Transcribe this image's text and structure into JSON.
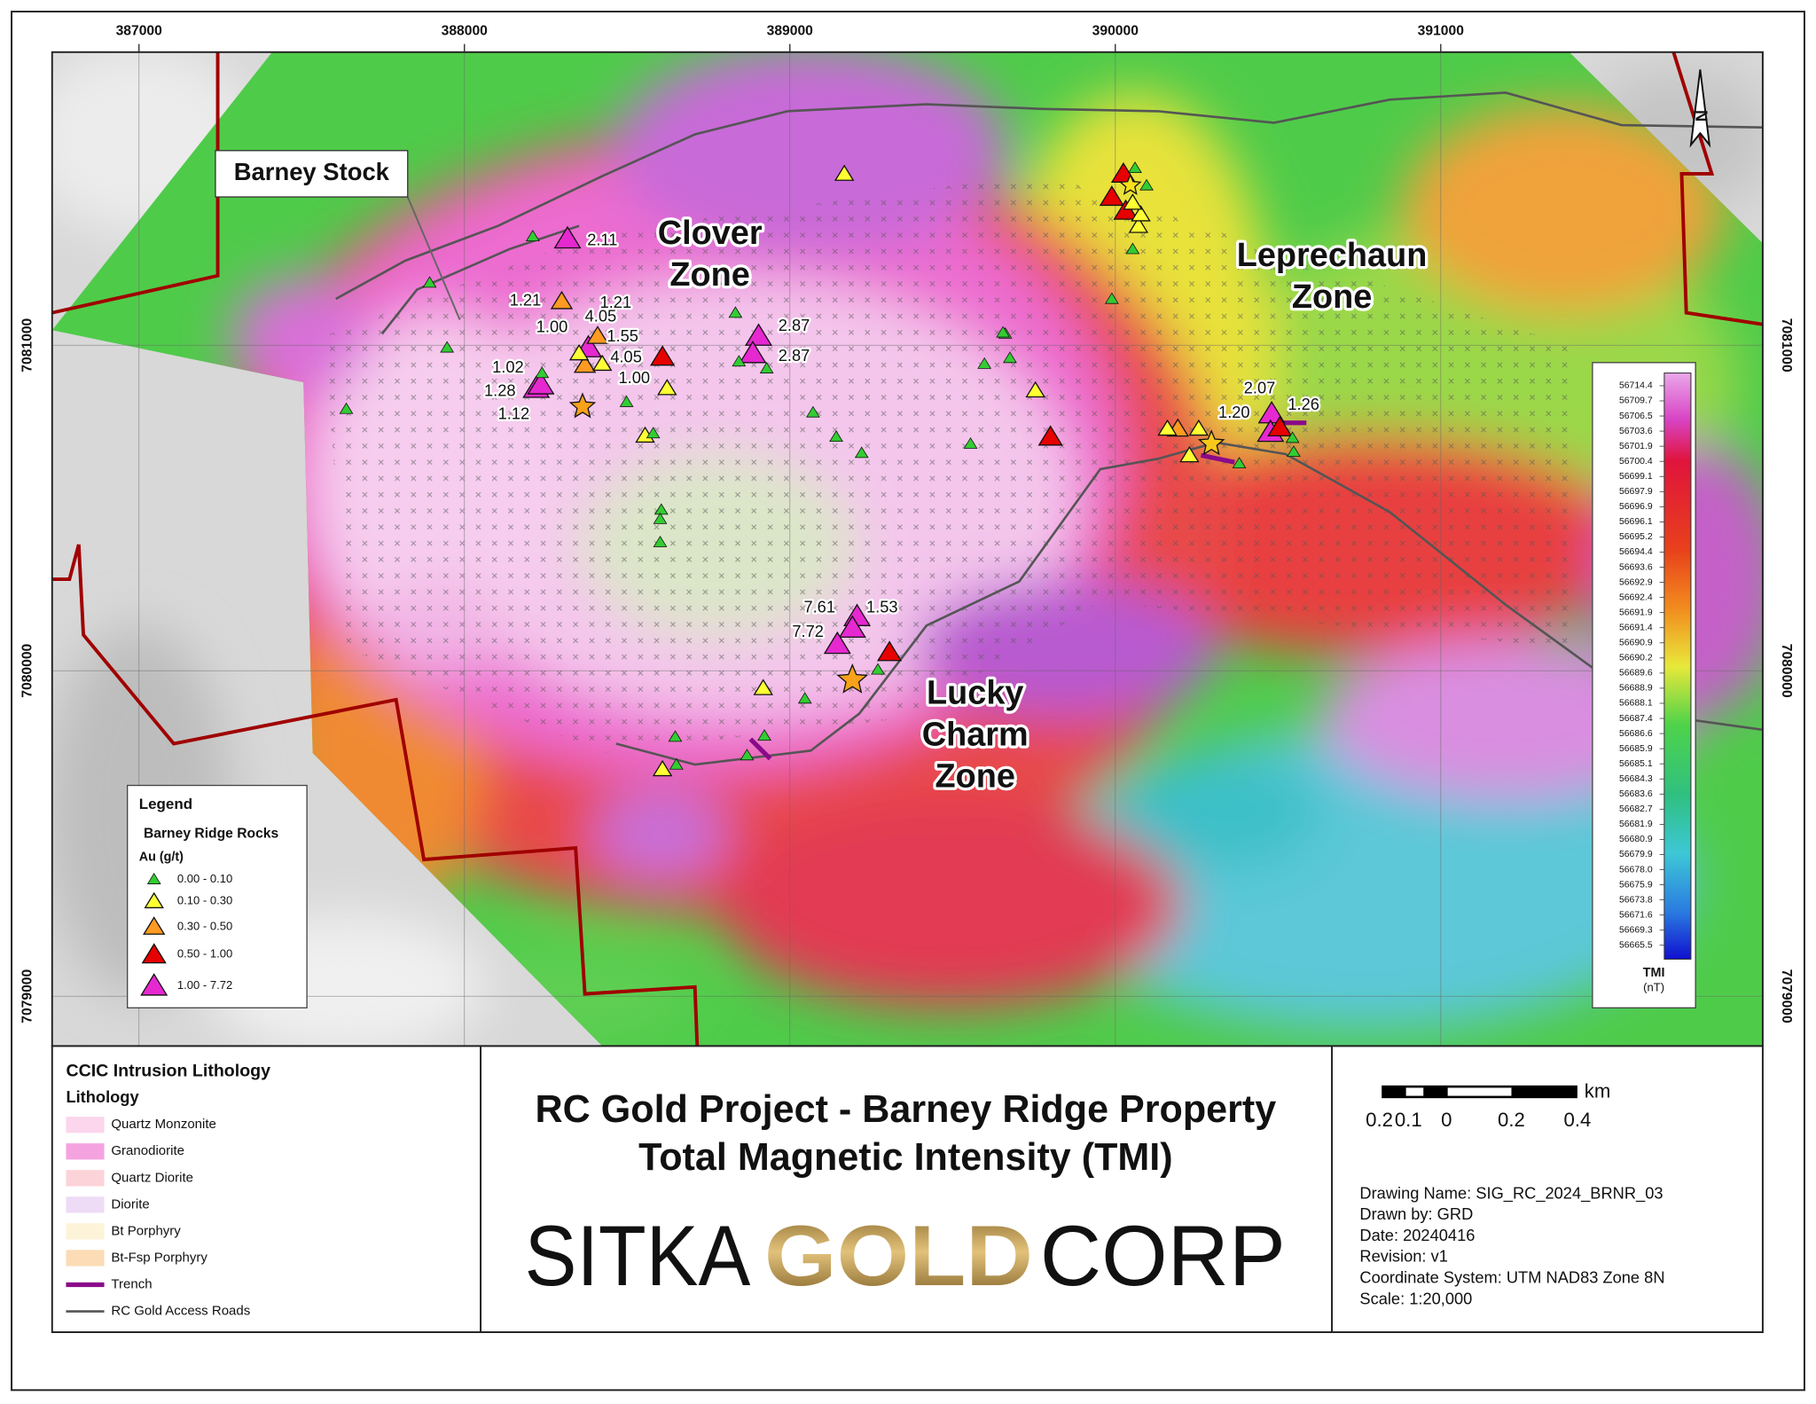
{
  "map": {
    "grid": {
      "eastings": [
        387000,
        388000,
        389000,
        390000,
        391000
      ],
      "northings": [
        7081000,
        7080000,
        7079000
      ]
    },
    "callout": "Barney Stock",
    "zones": [
      [
        "Clover",
        "Zone"
      ],
      [
        "Leprechaun",
        "Zone"
      ],
      [
        "Lucky",
        "Charm",
        "Zone"
      ]
    ],
    "samples": [
      "2.11",
      "1.21",
      "1.21",
      "1.00",
      "4.05",
      "1.55",
      "4.05",
      "1.00",
      "1.02",
      "1.28",
      "1.12",
      "2.87",
      "2.87",
      "2.07",
      "1.20",
      "1.26",
      "7.61",
      "1.53",
      "7.72"
    ],
    "north": "N"
  },
  "legend": {
    "title": "Legend",
    "subtitle": "Barney Ridge Rocks",
    "unit": "Au (g/t)",
    "classes": [
      "0.00 - 0.10",
      "0.10 - 0.30",
      "0.30 - 0.50",
      "0.50 - 1.00",
      "1.00 - 7.72"
    ]
  },
  "colorbar": {
    "labels": [
      "56714.4",
      "56709.7",
      "56706.5",
      "56703.6",
      "56701.9",
      "56700.4",
      "56699.1",
      "56697.9",
      "56696.9",
      "56696.1",
      "56695.2",
      "56694.4",
      "56693.6",
      "56692.9",
      "56692.4",
      "56691.9",
      "56691.4",
      "56690.9",
      "56690.2",
      "56689.6",
      "56688.9",
      "56688.1",
      "56687.4",
      "56686.6",
      "56685.9",
      "56685.1",
      "56684.3",
      "56683.6",
      "56682.7",
      "56681.9",
      "56680.9",
      "56679.9",
      "56678.0",
      "56675.9",
      "56673.8",
      "56671.6",
      "56669.3",
      "56665.5"
    ],
    "title": "TMI",
    "unit": "(nT)"
  },
  "lithology": {
    "heading": "CCIC Intrusion Lithology",
    "subheading": "Lithology",
    "items": [
      "Quartz Monzonite",
      "Granodiorite",
      "Quartz Diorite",
      "Diorite",
      "Bt Porphyry",
      "Bt-Fsp Porphyry",
      "Trench",
      "RC Gold Access Roads"
    ]
  },
  "title": [
    "RC Gold Project - Barney Ridge Property",
    "Total Magnetic Intensity (TMI)"
  ],
  "logo": [
    "SITKA",
    "GOLD",
    "CORP"
  ],
  "scale_bar": {
    "unit": "km",
    "labels": [
      "0.2",
      "0.1",
      "0",
      "0.2",
      "0.4"
    ]
  },
  "drawing_info": [
    "Drawing Name: SIG_RC_2024_BRNR_03",
    "Drawn by: GRD",
    "Date: 20240416",
    "Revision: v1",
    "Coordinate System: UTM NAD83 Zone 8N",
    "Scale: 1:20,000"
  ]
}
